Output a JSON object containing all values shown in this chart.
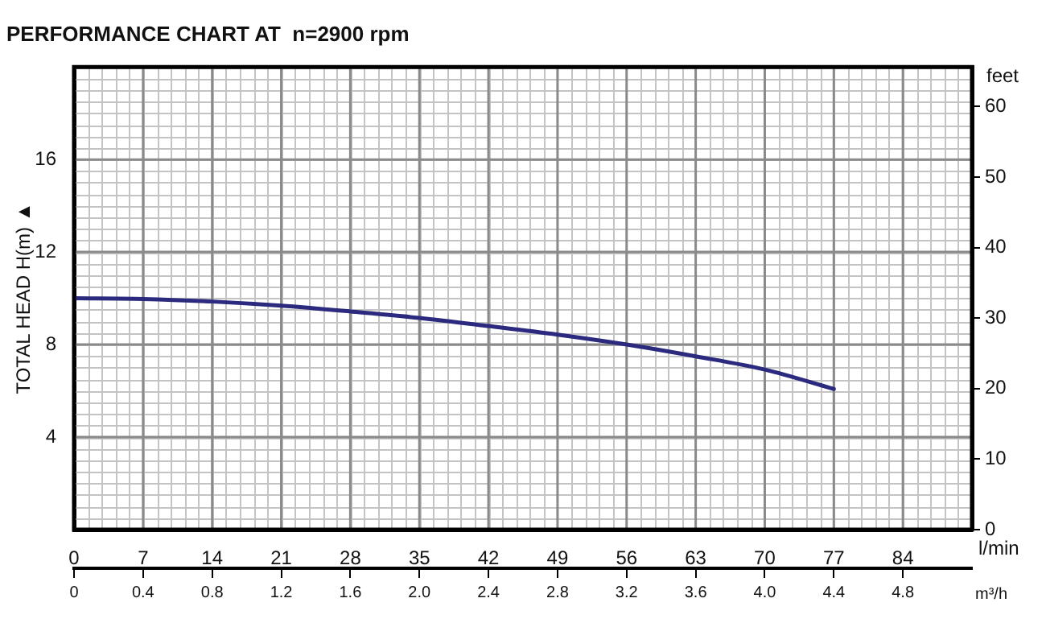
{
  "chart_data": {
    "type": "line",
    "title": "PERFORMANCE CHART AT  n=2900 rpm",
    "xlabel": "l/min",
    "x2label": "m³/h",
    "ylabel": "TOTAL HEAD H(m) ▲",
    "y2label": "feet",
    "x": [
      0,
      7,
      14,
      21,
      28,
      35,
      42,
      49,
      56,
      63,
      70,
      77
    ],
    "series": [
      {
        "color": "#2b2a7e",
        "values": [
          10.0,
          9.97,
          9.86,
          9.68,
          9.43,
          9.15,
          8.8,
          8.43,
          8.0,
          7.49,
          6.92,
          6.08
        ]
      }
    ],
    "xlim": [
      0,
      91
    ],
    "xticks": [
      0,
      7,
      14,
      21,
      28,
      35,
      42,
      49,
      56,
      63,
      70,
      77,
      84
    ],
    "x2lim": [
      0,
      5.2
    ],
    "x2ticks": [
      0,
      0.4,
      0.8,
      1.2,
      1.6,
      {
        "value": 2,
        "label": "2.0"
      },
      2.4,
      2.8,
      3.2,
      3.6,
      {
        "value": 4,
        "label": "4.0"
      },
      4.4,
      4.8
    ],
    "ylim": [
      0,
      20
    ],
    "yticks": [
      4,
      8,
      12,
      16
    ],
    "y2lim": [
      0,
      65.62
    ],
    "y2ticks": [
      0,
      10,
      20,
      30,
      40,
      50,
      60
    ],
    "grid": true,
    "legend": false,
    "marker": "none",
    "line_style": "solid"
  }
}
